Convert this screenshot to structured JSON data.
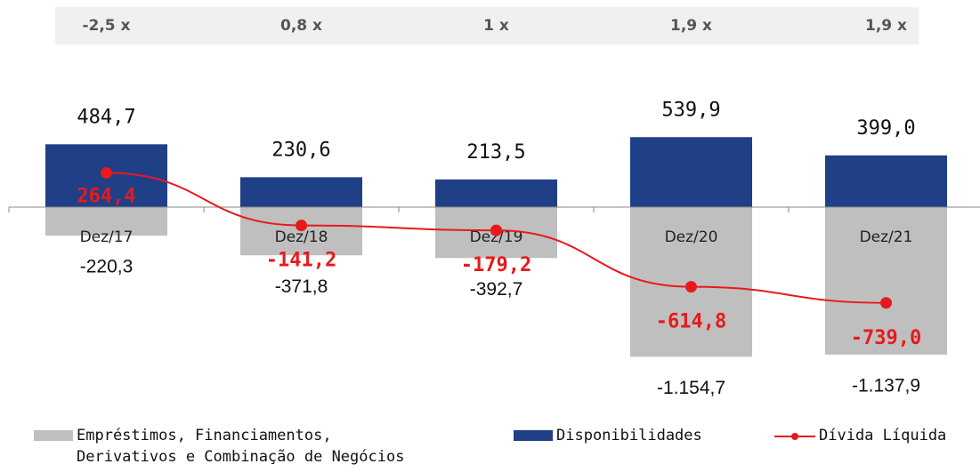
{
  "chart_data": {
    "type": "bar",
    "ratios": [
      "-2,5 x",
      "0,8 x",
      "1 x",
      "1,9 x",
      "1,9 x"
    ],
    "categories": [
      "Dez/17",
      "Dez/18",
      "Dez/19",
      "Dez/20",
      "Dez/21"
    ],
    "ylim": [
      -1200,
      600
    ],
    "series": [
      {
        "name": "Empréstimos, Financiamentos,\nDerivativos e Combinação de Negócios",
        "color": "#bfbfbf",
        "values": [
          -220.3,
          -371.8,
          -392.7,
          -1154.7,
          -1137.9
        ],
        "value_labels": [
          "-220,3",
          "-371,8",
          "-392,7",
          "-1.154,7",
          "-1.137,9"
        ]
      },
      {
        "name": "Disponibilidades",
        "color": "#1f3f87",
        "values": [
          484.7,
          230.6,
          213.5,
          539.9,
          399.0
        ],
        "value_labels": [
          "484,7",
          "230,6",
          "213,5",
          "539,9",
          "399,0"
        ]
      },
      {
        "name": "Dívida Líquida",
        "type": "line",
        "color": "#e8191b",
        "values": [
          264.4,
          -141.2,
          -179.2,
          -614.8,
          -739.0
        ],
        "value_labels": [
          "264,4",
          "-141,2",
          "-179,2",
          "-614,8",
          "-739,0"
        ]
      }
    ]
  }
}
